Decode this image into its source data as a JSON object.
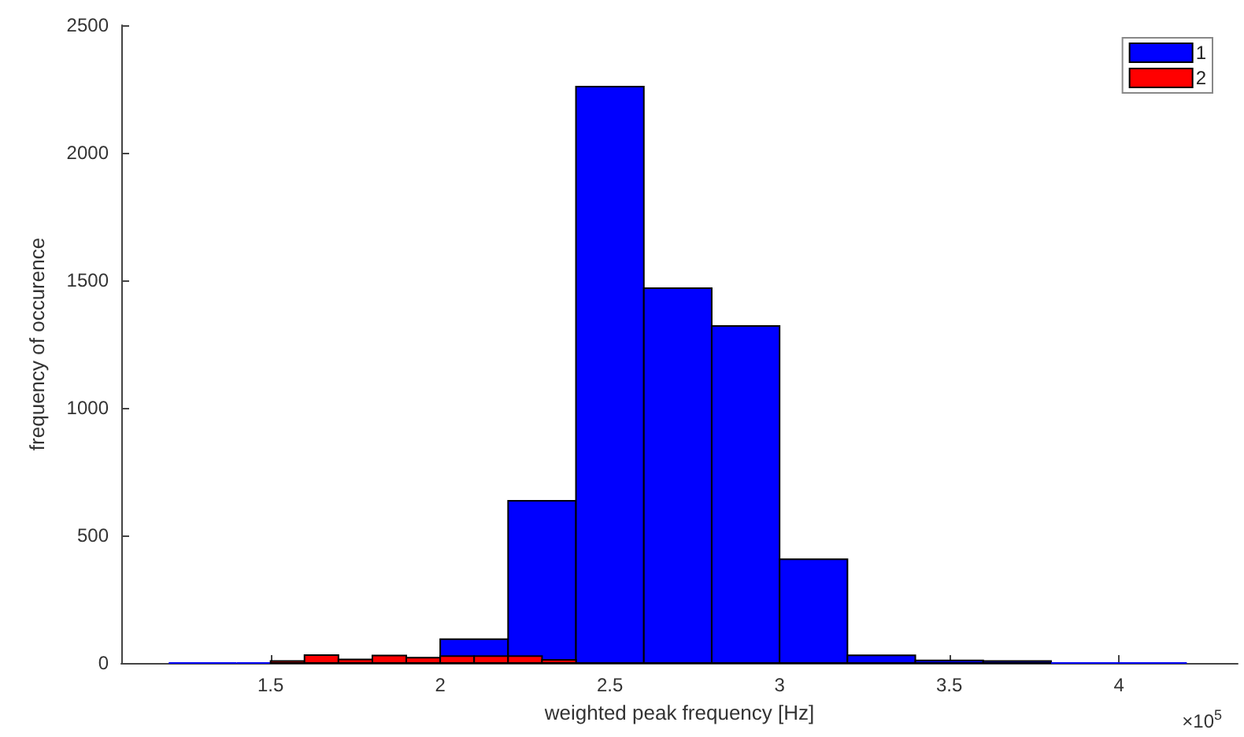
{
  "chart_data": {
    "type": "histogram",
    "xlabel": "weighted peak frequency [Hz]",
    "ylabel": "frequency of occurence",
    "annotations": [
      "×10$^{5}$"
    ],
    "series": [
      {
        "name": "1",
        "color": "#0000ff",
        "values": [
          0,
          0,
          0,
          0,
          93,
          636,
          2259,
          1469,
          1321,
          407,
          30,
          10,
          8,
          0,
          0
        ]
      },
      {
        "name": "2",
        "color": "#ff0000",
        "bins": [
          1.5,
          1.6,
          1.7,
          1.8,
          1.9,
          2.0,
          2.1,
          2.2,
          2.3,
          2.4
        ],
        "values": [
          8,
          31,
          14,
          29,
          21,
          27,
          27,
          27,
          12
        ]
      }
    ],
    "bins": [
      1.2,
      1.4,
      1.6,
      1.8,
      2.0,
      2.2,
      2.4,
      2.6,
      2.8,
      3.0,
      3.2,
      3.4,
      3.6,
      3.8,
      4.0,
      4.2
    ],
    "xlim": [
      1.06,
      4.35
    ],
    "xticks": [
      1.5,
      2,
      2.5,
      3,
      3.5,
      4
    ],
    "ylim": [
      0,
      2500
    ],
    "yticks": [
      0,
      500,
      1000,
      1500,
      2000,
      2500
    ],
    "grid": false,
    "legend": "top right"
  }
}
